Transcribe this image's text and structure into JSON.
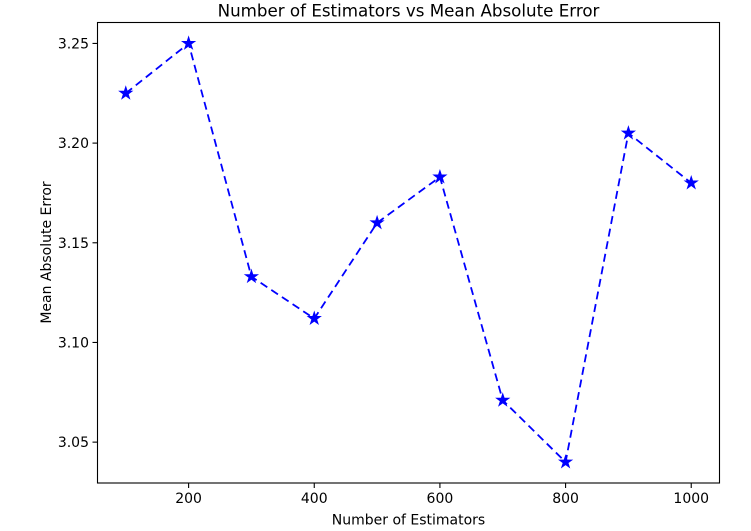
{
  "chart_data": {
    "type": "line",
    "title": "Number of Estimators vs Mean Absolute Error",
    "xlabel": "Number of Estimators",
    "ylabel": "Mean Absolute Error",
    "x": [
      100,
      200,
      300,
      400,
      500,
      600,
      700,
      800,
      900,
      1000
    ],
    "y": [
      3.225,
      3.25,
      3.133,
      3.112,
      3.16,
      3.183,
      3.071,
      3.04,
      3.205,
      3.18
    ],
    "line_color": "#0000FF",
    "line_style": "dashed",
    "marker": "star",
    "marker_color": "#0000FF",
    "xticks": [
      200,
      400,
      600,
      800,
      1000
    ],
    "xtick_labels": [
      "200",
      "400",
      "600",
      "800",
      "1000"
    ],
    "yticks": [
      3.05,
      3.1,
      3.15,
      3.2,
      3.25
    ],
    "ytick_labels": [
      "3.05",
      "3.10",
      "3.15",
      "3.20",
      "3.25"
    ],
    "xlim": [
      55,
      1045
    ],
    "ylim": [
      3.0295,
      3.2605
    ],
    "grid": false,
    "legend": null,
    "background_color": "#FFFFFF",
    "spine_color": "#000000",
    "text_color": "#000000"
  }
}
